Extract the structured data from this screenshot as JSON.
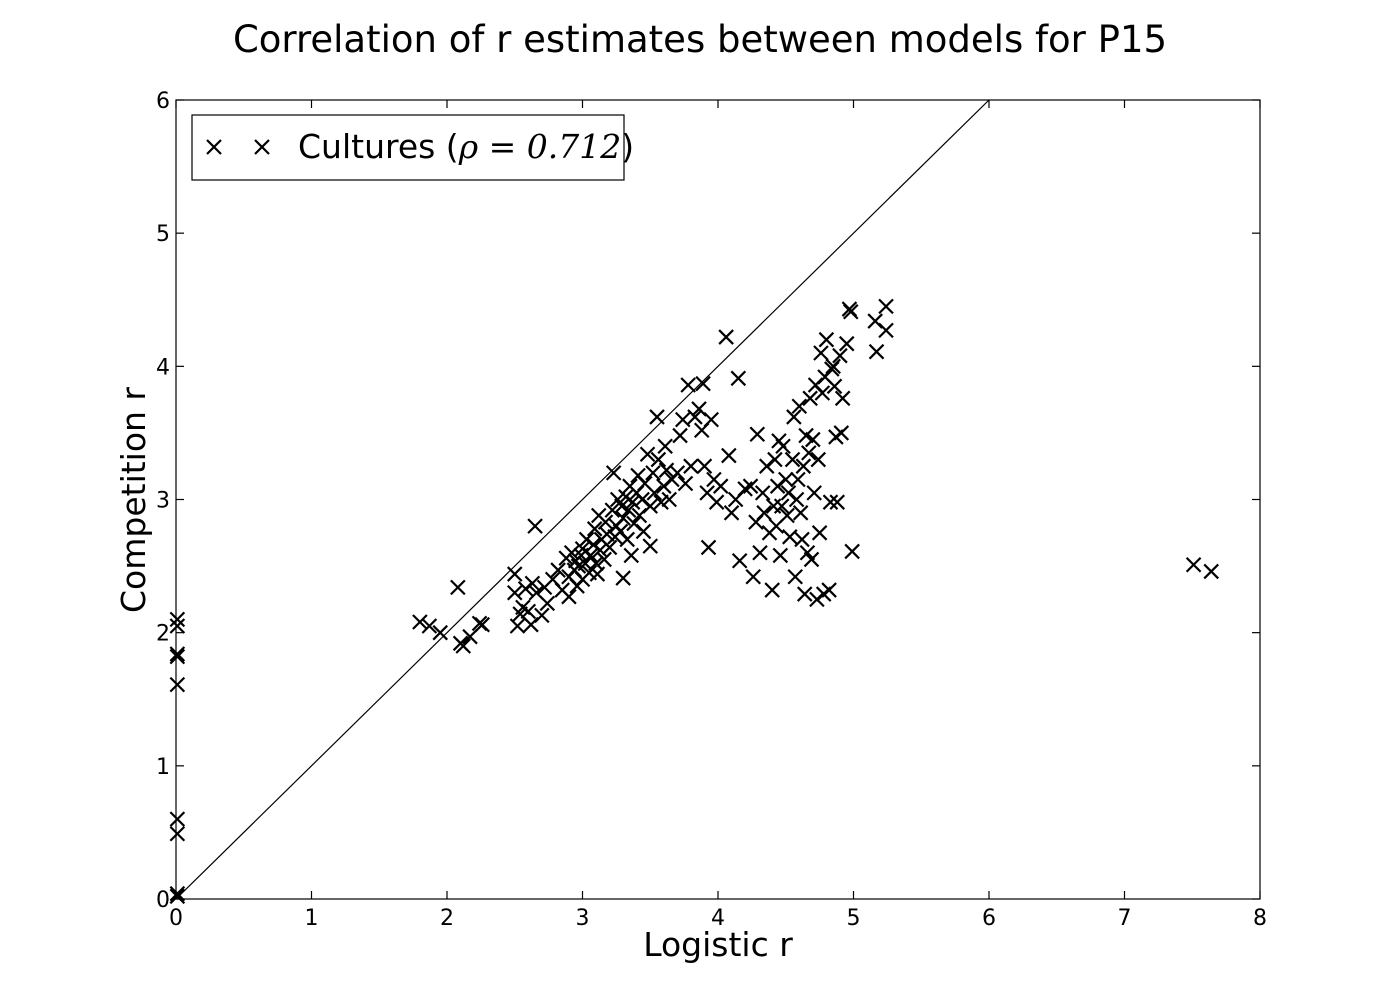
{
  "chart_data": {
    "type": "scatter",
    "title": "Correlation of r estimates between models for P15",
    "xlabel": "Logistic r",
    "ylabel": "Competition r",
    "xlim": [
      0,
      8
    ],
    "ylim": [
      0,
      6
    ],
    "xticks": [
      "0",
      "1",
      "2",
      "3",
      "4",
      "5",
      "6",
      "7",
      "8"
    ],
    "yticks": [
      "0",
      "1",
      "2",
      "3",
      "4",
      "5",
      "6"
    ],
    "grid": false,
    "legend": {
      "placement": "top-left",
      "label_prefix": "Cultures (",
      "rho_symbol": "ρ",
      "rho_equals": " = ",
      "rho_value": "0.712",
      "label_suffix": ")"
    },
    "reference_line": {
      "from": [
        0,
        0
      ],
      "to": [
        6,
        6
      ]
    },
    "marker": "x",
    "color": "#000000",
    "series": [
      {
        "name": "Cultures",
        "points": [
          [
            0.01,
            2.1
          ],
          [
            0.01,
            2.05
          ],
          [
            0.01,
            1.84
          ],
          [
            0.01,
            1.82
          ],
          [
            0.01,
            1.61
          ],
          [
            0.01,
            0.6
          ],
          [
            0.01,
            0.49
          ],
          [
            0.01,
            0.04
          ],
          [
            0.01,
            0.02
          ],
          [
            1.8,
            2.08
          ],
          [
            1.87,
            2.05
          ],
          [
            1.95,
            2.0
          ],
          [
            2.08,
            2.34
          ],
          [
            2.1,
            1.92
          ],
          [
            2.12,
            1.9
          ],
          [
            2.17,
            1.97
          ],
          [
            2.24,
            2.07
          ],
          [
            2.26,
            2.06
          ],
          [
            2.5,
            2.44
          ],
          [
            2.5,
            2.3
          ],
          [
            2.52,
            2.05
          ],
          [
            2.54,
            2.14
          ],
          [
            2.56,
            2.19
          ],
          [
            2.58,
            2.33
          ],
          [
            2.6,
            2.16
          ],
          [
            2.62,
            2.06
          ],
          [
            2.63,
            2.37
          ],
          [
            2.65,
            2.8
          ],
          [
            2.66,
            2.3
          ],
          [
            2.7,
            2.13
          ],
          [
            2.72,
            2.34
          ],
          [
            2.74,
            2.22
          ],
          [
            2.78,
            2.4
          ],
          [
            2.82,
            2.47
          ],
          [
            2.85,
            2.32
          ],
          [
            2.88,
            2.56
          ],
          [
            2.9,
            2.42
          ],
          [
            2.9,
            2.27
          ],
          [
            2.92,
            2.6
          ],
          [
            2.94,
            2.47
          ],
          [
            2.95,
            2.54
          ],
          [
            2.96,
            2.35
          ],
          [
            2.97,
            2.5
          ],
          [
            2.99,
            2.58
          ],
          [
            3.0,
            2.4
          ],
          [
            3.0,
            2.63
          ],
          [
            3.02,
            2.52
          ],
          [
            3.03,
            2.7
          ],
          [
            3.05,
            2.45
          ],
          [
            3.06,
            2.58
          ],
          [
            3.08,
            2.66
          ],
          [
            3.09,
            2.78
          ],
          [
            3.1,
            2.52
          ],
          [
            3.11,
            2.44
          ],
          [
            3.12,
            2.88
          ],
          [
            3.13,
            2.62
          ],
          [
            3.14,
            2.7
          ],
          [
            3.16,
            2.55
          ],
          [
            3.17,
            2.83
          ],
          [
            3.18,
            2.74
          ],
          [
            3.2,
            2.64
          ],
          [
            3.22,
            2.92
          ],
          [
            3.23,
            3.2
          ],
          [
            3.24,
            2.72
          ],
          [
            3.25,
            2.8
          ],
          [
            3.26,
            3.0
          ],
          [
            3.28,
            2.76
          ],
          [
            3.29,
            2.95
          ],
          [
            3.3,
            2.41
          ],
          [
            3.3,
            2.86
          ],
          [
            3.32,
            3.02
          ],
          [
            3.33,
            2.7
          ],
          [
            3.34,
            2.92
          ],
          [
            3.35,
            3.1
          ],
          [
            3.36,
            2.58
          ],
          [
            3.37,
            2.98
          ],
          [
            3.38,
            2.82
          ],
          [
            3.4,
            3.05
          ],
          [
            3.41,
            3.18
          ],
          [
            3.42,
            2.88
          ],
          [
            3.44,
            3.0
          ],
          [
            3.45,
            2.76
          ],
          [
            3.46,
            3.12
          ],
          [
            3.48,
            3.34
          ],
          [
            3.5,
            2.65
          ],
          [
            3.5,
            2.95
          ],
          [
            3.52,
            3.2
          ],
          [
            3.53,
            3.05
          ],
          [
            3.55,
            3.62
          ],
          [
            3.56,
            3.3
          ],
          [
            3.58,
            2.98
          ],
          [
            3.6,
            3.1
          ],
          [
            3.61,
            3.4
          ],
          [
            3.62,
            3.22
          ],
          [
            3.64,
            3.0
          ],
          [
            3.66,
            3.15
          ],
          [
            3.7,
            3.2
          ],
          [
            3.72,
            3.48
          ],
          [
            3.74,
            3.6
          ],
          [
            3.76,
            3.12
          ],
          [
            3.78,
            3.86
          ],
          [
            3.8,
            3.25
          ],
          [
            3.83,
            3.62
          ],
          [
            3.86,
            3.68
          ],
          [
            3.88,
            3.52
          ],
          [
            3.89,
            3.87
          ],
          [
            3.9,
            3.25
          ],
          [
            3.92,
            3.05
          ],
          [
            3.93,
            2.64
          ],
          [
            3.95,
            3.6
          ],
          [
            3.97,
            3.15
          ],
          [
            3.99,
            2.98
          ],
          [
            4.02,
            3.1
          ],
          [
            4.06,
            4.22
          ],
          [
            4.08,
            3.33
          ],
          [
            4.1,
            2.9
          ],
          [
            4.13,
            3.0
          ],
          [
            4.15,
            3.91
          ],
          [
            4.16,
            2.54
          ],
          [
            4.2,
            3.08
          ],
          [
            4.24,
            3.1
          ],
          [
            4.26,
            2.42
          ],
          [
            4.28,
            2.83
          ],
          [
            4.29,
            3.49
          ],
          [
            4.31,
            2.6
          ],
          [
            4.33,
            3.05
          ],
          [
            4.34,
            2.9
          ],
          [
            4.36,
            3.25
          ],
          [
            4.38,
            2.75
          ],
          [
            4.4,
            2.32
          ],
          [
            4.41,
            2.95
          ],
          [
            4.42,
            3.3
          ],
          [
            4.43,
            2.8
          ],
          [
            4.44,
            3.1
          ],
          [
            4.45,
            3.44
          ],
          [
            4.46,
            2.58
          ],
          [
            4.47,
            2.95
          ],
          [
            4.48,
            3.4
          ],
          [
            4.5,
            3.15
          ],
          [
            4.51,
            2.88
          ],
          [
            4.52,
            3.05
          ],
          [
            4.53,
            2.72
          ],
          [
            4.55,
            3.3
          ],
          [
            4.56,
            3.62
          ],
          [
            4.57,
            2.42
          ],
          [
            4.58,
            3.0
          ],
          [
            4.59,
            3.15
          ],
          [
            4.6,
            3.7
          ],
          [
            4.61,
            2.9
          ],
          [
            4.62,
            2.7
          ],
          [
            4.63,
            3.25
          ],
          [
            4.64,
            2.29
          ],
          [
            4.65,
            3.48
          ],
          [
            4.66,
            2.6
          ],
          [
            4.67,
            3.35
          ],
          [
            4.68,
            3.76
          ],
          [
            4.69,
            2.55
          ],
          [
            4.7,
            3.45
          ],
          [
            4.71,
            3.05
          ],
          [
            4.72,
            3.86
          ],
          [
            4.73,
            2.25
          ],
          [
            4.74,
            3.3
          ],
          [
            4.75,
            2.75
          ],
          [
            4.76,
            4.1
          ],
          [
            4.77,
            3.8
          ],
          [
            4.78,
            2.29
          ],
          [
            4.79,
            3.92
          ],
          [
            4.8,
            4.2
          ],
          [
            4.82,
            2.32
          ],
          [
            4.83,
            2.98
          ],
          [
            4.84,
            3.98
          ],
          [
            4.85,
            4.0
          ],
          [
            4.86,
            3.85
          ],
          [
            4.87,
            3.47
          ],
          [
            4.88,
            2.98
          ],
          [
            4.9,
            4.08
          ],
          [
            4.91,
            3.5
          ],
          [
            4.92,
            3.76
          ],
          [
            4.95,
            4.17
          ],
          [
            4.97,
            4.43
          ],
          [
            4.98,
            4.41
          ],
          [
            4.99,
            2.61
          ],
          [
            5.16,
            4.34
          ],
          [
            5.17,
            4.11
          ],
          [
            5.24,
            4.45
          ],
          [
            5.24,
            4.27
          ],
          [
            7.51,
            2.51
          ],
          [
            7.64,
            2.46
          ]
        ]
      }
    ]
  }
}
